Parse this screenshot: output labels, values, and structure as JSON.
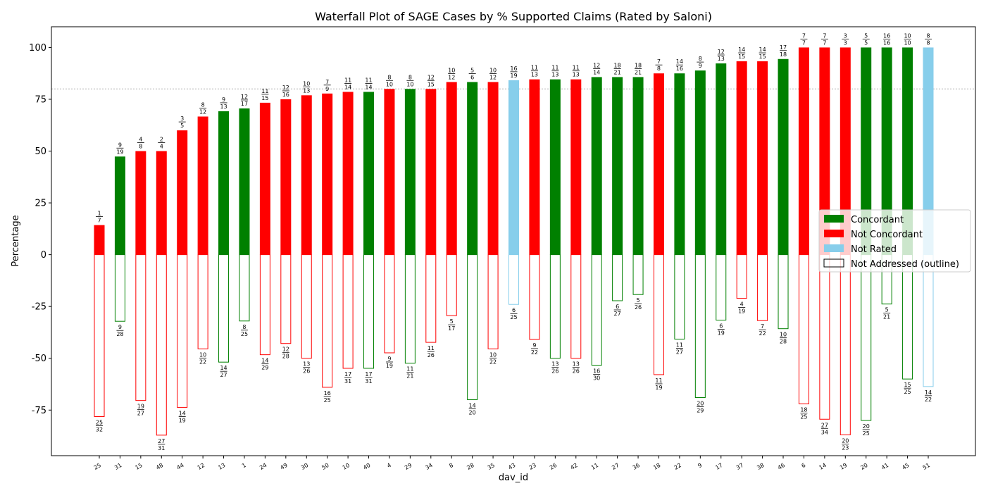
{
  "chart_data": {
    "type": "bar",
    "title": "Waterfall Plot of SAGE Cases by % Supported Claims (Rated by Saloni)",
    "xlabel": "dav_id",
    "ylabel": "Percentage",
    "ylim": [
      -97,
      110
    ],
    "yticks": [
      -75,
      -50,
      -25,
      0,
      25,
      50,
      75,
      100
    ],
    "reference_line": 80,
    "grid": false,
    "legend_position": "right",
    "legend": [
      {
        "name": "Concordant",
        "color": "#008000",
        "style": "filled"
      },
      {
        "name": "Not Concordant",
        "color": "#ff0000",
        "style": "filled"
      },
      {
        "name": "Not Rated",
        "color": "#87ceeb",
        "style": "filled"
      },
      {
        "name": "Not Addressed (outline)",
        "color": "#000000",
        "style": "outline"
      }
    ],
    "colors": {
      "Concordant": "#008000",
      "Not Concordant": "#ff0000",
      "Not Rated": "#87ceeb"
    },
    "bars": [
      {
        "id": "25",
        "status": "Not Concordant",
        "supported": [
          1,
          7
        ],
        "not_addressed": [
          25,
          32
        ]
      },
      {
        "id": "31",
        "status": "Concordant",
        "supported": [
          9,
          19
        ],
        "not_addressed": [
          9,
          28
        ]
      },
      {
        "id": "15",
        "status": "Not Concordant",
        "supported": [
          4,
          8
        ],
        "not_addressed": [
          19,
          27
        ]
      },
      {
        "id": "48",
        "status": "Not Concordant",
        "supported": [
          2,
          4
        ],
        "not_addressed": [
          27,
          31
        ]
      },
      {
        "id": "44",
        "status": "Not Concordant",
        "supported": [
          3,
          5
        ],
        "not_addressed": [
          14,
          19
        ]
      },
      {
        "id": "12",
        "status": "Not Concordant",
        "supported": [
          8,
          12
        ],
        "not_addressed": [
          10,
          22
        ]
      },
      {
        "id": "13",
        "status": "Concordant",
        "supported": [
          9,
          13
        ],
        "not_addressed": [
          14,
          27
        ]
      },
      {
        "id": "1",
        "status": "Concordant",
        "supported": [
          12,
          17
        ],
        "not_addressed": [
          8,
          25
        ]
      },
      {
        "id": "24",
        "status": "Not Concordant",
        "supported": [
          11,
          15
        ],
        "not_addressed": [
          14,
          29
        ]
      },
      {
        "id": "49",
        "status": "Not Concordant",
        "supported": [
          12,
          16
        ],
        "not_addressed": [
          12,
          28
        ]
      },
      {
        "id": "30",
        "status": "Not Concordant",
        "supported": [
          10,
          13
        ],
        "not_addressed": [
          13,
          26
        ]
      },
      {
        "id": "50",
        "status": "Not Concordant",
        "supported": [
          7,
          9
        ],
        "not_addressed": [
          16,
          25
        ]
      },
      {
        "id": "10",
        "status": "Not Concordant",
        "supported": [
          11,
          14
        ],
        "not_addressed": [
          17,
          31
        ]
      },
      {
        "id": "40",
        "status": "Concordant",
        "supported": [
          11,
          14
        ],
        "not_addressed": [
          17,
          31
        ]
      },
      {
        "id": "4",
        "status": "Not Concordant",
        "supported": [
          8,
          10
        ],
        "not_addressed": [
          9,
          19
        ]
      },
      {
        "id": "29",
        "status": "Concordant",
        "supported": [
          8,
          10
        ],
        "not_addressed": [
          11,
          21
        ]
      },
      {
        "id": "34",
        "status": "Not Concordant",
        "supported": [
          12,
          15
        ],
        "not_addressed": [
          11,
          26
        ]
      },
      {
        "id": "8",
        "status": "Not Concordant",
        "supported": [
          10,
          12
        ],
        "not_addressed": [
          5,
          17
        ]
      },
      {
        "id": "28",
        "status": "Concordant",
        "supported": [
          5,
          6
        ],
        "not_addressed": [
          14,
          20
        ]
      },
      {
        "id": "35",
        "status": "Not Concordant",
        "supported": [
          10,
          12
        ],
        "not_addressed": [
          10,
          22
        ]
      },
      {
        "id": "43",
        "status": "Not Rated",
        "supported": [
          16,
          19
        ],
        "not_addressed": [
          6,
          25
        ]
      },
      {
        "id": "23",
        "status": "Not Concordant",
        "supported": [
          11,
          13
        ],
        "not_addressed": [
          9,
          22
        ]
      },
      {
        "id": "26",
        "status": "Concordant",
        "supported": [
          11,
          13
        ],
        "not_addressed": [
          13,
          26
        ]
      },
      {
        "id": "42",
        "status": "Not Concordant",
        "supported": [
          11,
          13
        ],
        "not_addressed": [
          13,
          26
        ]
      },
      {
        "id": "11",
        "status": "Concordant",
        "supported": [
          12,
          14
        ],
        "not_addressed": [
          16,
          30
        ]
      },
      {
        "id": "27",
        "status": "Concordant",
        "supported": [
          18,
          21
        ],
        "not_addressed": [
          6,
          27
        ]
      },
      {
        "id": "36",
        "status": "Concordant",
        "supported": [
          18,
          21
        ],
        "not_addressed": [
          5,
          26
        ]
      },
      {
        "id": "18",
        "status": "Not Concordant",
        "supported": [
          7,
          8
        ],
        "not_addressed": [
          11,
          19
        ]
      },
      {
        "id": "22",
        "status": "Concordant",
        "supported": [
          14,
          16
        ],
        "not_addressed": [
          11,
          27
        ]
      },
      {
        "id": "9",
        "status": "Concordant",
        "supported": [
          8,
          9
        ],
        "not_addressed": [
          20,
          29
        ]
      },
      {
        "id": "17",
        "status": "Concordant",
        "supported": [
          12,
          13
        ],
        "not_addressed": [
          6,
          19
        ]
      },
      {
        "id": "37",
        "status": "Not Concordant",
        "supported": [
          14,
          15
        ],
        "not_addressed": [
          4,
          19
        ]
      },
      {
        "id": "38",
        "status": "Not Concordant",
        "supported": [
          14,
          15
        ],
        "not_addressed": [
          7,
          22
        ]
      },
      {
        "id": "46",
        "status": "Concordant",
        "supported": [
          17,
          18
        ],
        "not_addressed": [
          10,
          28
        ]
      },
      {
        "id": "6",
        "status": "Not Concordant",
        "supported": [
          7,
          7
        ],
        "not_addressed": [
          18,
          25
        ]
      },
      {
        "id": "14",
        "status": "Not Concordant",
        "supported": [
          7,
          7
        ],
        "not_addressed": [
          27,
          34
        ]
      },
      {
        "id": "19",
        "status": "Not Concordant",
        "supported": [
          3,
          3
        ],
        "not_addressed": [
          20,
          23
        ]
      },
      {
        "id": "20",
        "status": "Concordant",
        "supported": [
          5,
          5
        ],
        "not_addressed": [
          20,
          25
        ]
      },
      {
        "id": "41",
        "status": "Concordant",
        "supported": [
          16,
          16
        ],
        "not_addressed": [
          5,
          21
        ]
      },
      {
        "id": "45",
        "status": "Concordant",
        "supported": [
          10,
          10
        ],
        "not_addressed": [
          15,
          25
        ]
      },
      {
        "id": "51",
        "status": "Not Rated",
        "supported": [
          8,
          8
        ],
        "not_addressed": [
          14,
          22
        ]
      }
    ]
  }
}
